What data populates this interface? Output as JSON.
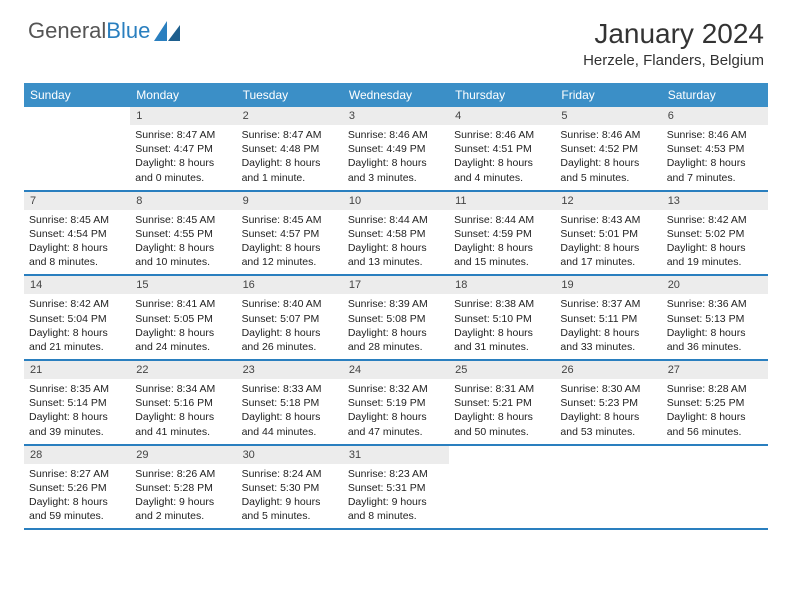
{
  "logo": {
    "text1": "General",
    "text2": "Blue",
    "color1": "#6a6a6a",
    "color2": "#2a7fbf"
  },
  "title": "January 2024",
  "location": "Herzele, Flanders, Belgium",
  "colors": {
    "header_bg": "#3b8fc7",
    "header_text": "#ffffff",
    "daynum_bg": "#ececec",
    "week_border": "#2a7fbf",
    "text": "#222222"
  },
  "day_headers": [
    "Sunday",
    "Monday",
    "Tuesday",
    "Wednesday",
    "Thursday",
    "Friday",
    "Saturday"
  ],
  "weeks": [
    [
      {
        "n": "",
        "lines": []
      },
      {
        "n": "1",
        "lines": [
          "Sunrise: 8:47 AM",
          "Sunset: 4:47 PM",
          "Daylight: 8 hours",
          "and 0 minutes."
        ]
      },
      {
        "n": "2",
        "lines": [
          "Sunrise: 8:47 AM",
          "Sunset: 4:48 PM",
          "Daylight: 8 hours",
          "and 1 minute."
        ]
      },
      {
        "n": "3",
        "lines": [
          "Sunrise: 8:46 AM",
          "Sunset: 4:49 PM",
          "Daylight: 8 hours",
          "and 3 minutes."
        ]
      },
      {
        "n": "4",
        "lines": [
          "Sunrise: 8:46 AM",
          "Sunset: 4:51 PM",
          "Daylight: 8 hours",
          "and 4 minutes."
        ]
      },
      {
        "n": "5",
        "lines": [
          "Sunrise: 8:46 AM",
          "Sunset: 4:52 PM",
          "Daylight: 8 hours",
          "and 5 minutes."
        ]
      },
      {
        "n": "6",
        "lines": [
          "Sunrise: 8:46 AM",
          "Sunset: 4:53 PM",
          "Daylight: 8 hours",
          "and 7 minutes."
        ]
      }
    ],
    [
      {
        "n": "7",
        "lines": [
          "Sunrise: 8:45 AM",
          "Sunset: 4:54 PM",
          "Daylight: 8 hours",
          "and 8 minutes."
        ]
      },
      {
        "n": "8",
        "lines": [
          "Sunrise: 8:45 AM",
          "Sunset: 4:55 PM",
          "Daylight: 8 hours",
          "and 10 minutes."
        ]
      },
      {
        "n": "9",
        "lines": [
          "Sunrise: 8:45 AM",
          "Sunset: 4:57 PM",
          "Daylight: 8 hours",
          "and 12 minutes."
        ]
      },
      {
        "n": "10",
        "lines": [
          "Sunrise: 8:44 AM",
          "Sunset: 4:58 PM",
          "Daylight: 8 hours",
          "and 13 minutes."
        ]
      },
      {
        "n": "11",
        "lines": [
          "Sunrise: 8:44 AM",
          "Sunset: 4:59 PM",
          "Daylight: 8 hours",
          "and 15 minutes."
        ]
      },
      {
        "n": "12",
        "lines": [
          "Sunrise: 8:43 AM",
          "Sunset: 5:01 PM",
          "Daylight: 8 hours",
          "and 17 minutes."
        ]
      },
      {
        "n": "13",
        "lines": [
          "Sunrise: 8:42 AM",
          "Sunset: 5:02 PM",
          "Daylight: 8 hours",
          "and 19 minutes."
        ]
      }
    ],
    [
      {
        "n": "14",
        "lines": [
          "Sunrise: 8:42 AM",
          "Sunset: 5:04 PM",
          "Daylight: 8 hours",
          "and 21 minutes."
        ]
      },
      {
        "n": "15",
        "lines": [
          "Sunrise: 8:41 AM",
          "Sunset: 5:05 PM",
          "Daylight: 8 hours",
          "and 24 minutes."
        ]
      },
      {
        "n": "16",
        "lines": [
          "Sunrise: 8:40 AM",
          "Sunset: 5:07 PM",
          "Daylight: 8 hours",
          "and 26 minutes."
        ]
      },
      {
        "n": "17",
        "lines": [
          "Sunrise: 8:39 AM",
          "Sunset: 5:08 PM",
          "Daylight: 8 hours",
          "and 28 minutes."
        ]
      },
      {
        "n": "18",
        "lines": [
          "Sunrise: 8:38 AM",
          "Sunset: 5:10 PM",
          "Daylight: 8 hours",
          "and 31 minutes."
        ]
      },
      {
        "n": "19",
        "lines": [
          "Sunrise: 8:37 AM",
          "Sunset: 5:11 PM",
          "Daylight: 8 hours",
          "and 33 minutes."
        ]
      },
      {
        "n": "20",
        "lines": [
          "Sunrise: 8:36 AM",
          "Sunset: 5:13 PM",
          "Daylight: 8 hours",
          "and 36 minutes."
        ]
      }
    ],
    [
      {
        "n": "21",
        "lines": [
          "Sunrise: 8:35 AM",
          "Sunset: 5:14 PM",
          "Daylight: 8 hours",
          "and 39 minutes."
        ]
      },
      {
        "n": "22",
        "lines": [
          "Sunrise: 8:34 AM",
          "Sunset: 5:16 PM",
          "Daylight: 8 hours",
          "and 41 minutes."
        ]
      },
      {
        "n": "23",
        "lines": [
          "Sunrise: 8:33 AM",
          "Sunset: 5:18 PM",
          "Daylight: 8 hours",
          "and 44 minutes."
        ]
      },
      {
        "n": "24",
        "lines": [
          "Sunrise: 8:32 AM",
          "Sunset: 5:19 PM",
          "Daylight: 8 hours",
          "and 47 minutes."
        ]
      },
      {
        "n": "25",
        "lines": [
          "Sunrise: 8:31 AM",
          "Sunset: 5:21 PM",
          "Daylight: 8 hours",
          "and 50 minutes."
        ]
      },
      {
        "n": "26",
        "lines": [
          "Sunrise: 8:30 AM",
          "Sunset: 5:23 PM",
          "Daylight: 8 hours",
          "and 53 minutes."
        ]
      },
      {
        "n": "27",
        "lines": [
          "Sunrise: 8:28 AM",
          "Sunset: 5:25 PM",
          "Daylight: 8 hours",
          "and 56 minutes."
        ]
      }
    ],
    [
      {
        "n": "28",
        "lines": [
          "Sunrise: 8:27 AM",
          "Sunset: 5:26 PM",
          "Daylight: 8 hours",
          "and 59 minutes."
        ]
      },
      {
        "n": "29",
        "lines": [
          "Sunrise: 8:26 AM",
          "Sunset: 5:28 PM",
          "Daylight: 9 hours",
          "and 2 minutes."
        ]
      },
      {
        "n": "30",
        "lines": [
          "Sunrise: 8:24 AM",
          "Sunset: 5:30 PM",
          "Daylight: 9 hours",
          "and 5 minutes."
        ]
      },
      {
        "n": "31",
        "lines": [
          "Sunrise: 8:23 AM",
          "Sunset: 5:31 PM",
          "Daylight: 9 hours",
          "and 8 minutes."
        ]
      },
      {
        "n": "",
        "lines": []
      },
      {
        "n": "",
        "lines": []
      },
      {
        "n": "",
        "lines": []
      }
    ]
  ]
}
